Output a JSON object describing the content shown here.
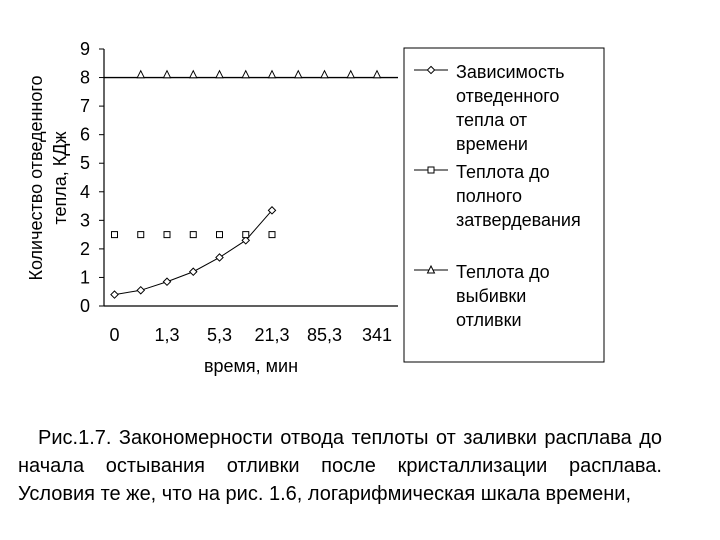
{
  "chart_data": {
    "type": "line",
    "title": "",
    "xlabel": "время, мин",
    "ylabel_line1": "Количество отведенного",
    "ylabel_line2": "тепла, КДж",
    "ylim": [
      0,
      9
    ],
    "y_ticks": [
      "0",
      "1",
      "2",
      "3",
      "4",
      "5",
      "6",
      "7",
      "8",
      "9"
    ],
    "x_ticks": [
      "0",
      "1,3",
      "5,3",
      "21,3",
      "85,3",
      "341"
    ],
    "x_tick_positions": [
      0,
      2,
      4,
      6,
      8,
      10
    ],
    "x_range": [
      -0.4,
      10.8
    ],
    "legend_position": "right",
    "grid": false,
    "series": [
      {
        "name": "Зависимость отведенного тепла от времени",
        "legend_lines": [
          "Зависимость",
          "отведенного",
          "тепла от",
          "времени"
        ],
        "marker": "diamond",
        "x": [
          0,
          1,
          2,
          3,
          4,
          5,
          6
        ],
        "y": [
          0.4,
          0.55,
          0.85,
          1.2,
          1.7,
          2.3,
          3.35
        ]
      },
      {
        "name": "Теплота до полного затвердевания",
        "legend_lines": [
          "Теплота до",
          "полного",
          "затвердевания"
        ],
        "marker": "square",
        "x": [
          0,
          1,
          2,
          3,
          4,
          5,
          6
        ],
        "y": [
          2.5,
          2.5,
          2.5,
          2.5,
          2.5,
          2.5,
          2.5
        ]
      },
      {
        "name": "Теплота до выбивки отливки",
        "legend_lines": [
          "Теплота до",
          "выбивки",
          "отливки"
        ],
        "marker": "triangle",
        "x": [
          1,
          2,
          3,
          4,
          5,
          6,
          7,
          8,
          9,
          10
        ],
        "y": [
          8.1,
          8.1,
          8.1,
          8.1,
          8.1,
          8.1,
          8.1,
          8.1,
          8.1,
          8.1
        ]
      }
    ],
    "reference_line": {
      "y": 8
    }
  },
  "caption": {
    "text": "Рис.1.7. Закономерности отвода теплоты от заливки расплава до начала остывания отливки после кристаллизации расплава. Условия те же, что на рис. 1.6, логарифмическая шкала времени,"
  }
}
